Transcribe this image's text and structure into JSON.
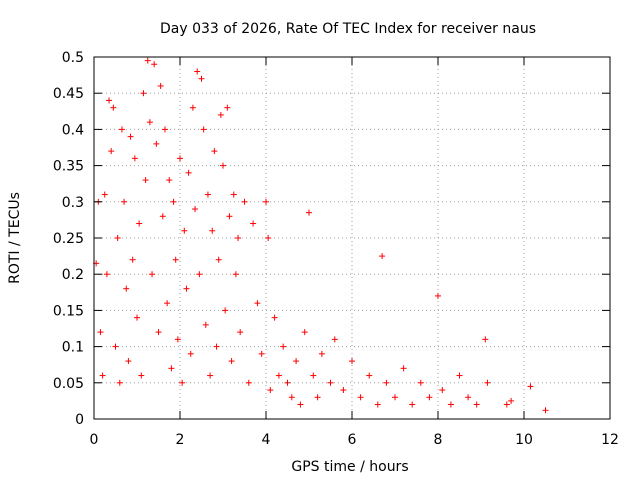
{
  "chart_data": {
    "type": "scatter",
    "title": "Day 033 of 2026, Rate Of TEC Index for receiver naus",
    "xlabel": "GPS time / hours",
    "ylabel": "ROTI / TECUs",
    "xlim": [
      0,
      12
    ],
    "ylim": [
      0,
      0.5
    ],
    "x_ticks": [
      "0",
      "2",
      "4",
      "6",
      "8",
      "10",
      "12"
    ],
    "y_ticks": [
      "0",
      "0.05",
      "0.1",
      "0.15",
      "0.2",
      "0.25",
      "0.3",
      "0.35",
      "0.4",
      "0.45",
      "0.5"
    ],
    "grid": true,
    "marker": "+",
    "color": "#ff0000",
    "points": [
      [
        0.05,
        0.215
      ],
      [
        0.1,
        0.3
      ],
      [
        0.15,
        0.12
      ],
      [
        0.2,
        0.06
      ],
      [
        0.25,
        0.31
      ],
      [
        0.3,
        0.2
      ],
      [
        0.35,
        0.44
      ],
      [
        0.4,
        0.37
      ],
      [
        0.45,
        0.43
      ],
      [
        0.5,
        0.1
      ],
      [
        0.55,
        0.25
      ],
      [
        0.6,
        0.05
      ],
      [
        0.65,
        0.4
      ],
      [
        0.7,
        0.3
      ],
      [
        0.75,
        0.18
      ],
      [
        0.8,
        0.08
      ],
      [
        0.85,
        0.39
      ],
      [
        0.9,
        0.22
      ],
      [
        0.95,
        0.36
      ],
      [
        1.0,
        0.14
      ],
      [
        1.05,
        0.27
      ],
      [
        1.1,
        0.06
      ],
      [
        1.15,
        0.45
      ],
      [
        1.2,
        0.33
      ],
      [
        1.25,
        0.495
      ],
      [
        1.3,
        0.41
      ],
      [
        1.35,
        0.2
      ],
      [
        1.4,
        0.49
      ],
      [
        1.45,
        0.38
      ],
      [
        1.5,
        0.12
      ],
      [
        1.55,
        0.46
      ],
      [
        1.6,
        0.28
      ],
      [
        1.65,
        0.4
      ],
      [
        1.7,
        0.16
      ],
      [
        1.75,
        0.33
      ],
      [
        1.8,
        0.07
      ],
      [
        1.85,
        0.3
      ],
      [
        1.9,
        0.22
      ],
      [
        1.95,
        0.11
      ],
      [
        2.0,
        0.36
      ],
      [
        2.05,
        0.05
      ],
      [
        2.1,
        0.26
      ],
      [
        2.15,
        0.18
      ],
      [
        2.2,
        0.34
      ],
      [
        2.25,
        0.09
      ],
      [
        2.3,
        0.43
      ],
      [
        2.35,
        0.29
      ],
      [
        2.4,
        0.48
      ],
      [
        2.45,
        0.2
      ],
      [
        2.5,
        0.47
      ],
      [
        2.55,
        0.4
      ],
      [
        2.6,
        0.13
      ],
      [
        2.65,
        0.31
      ],
      [
        2.7,
        0.06
      ],
      [
        2.75,
        0.26
      ],
      [
        2.8,
        0.37
      ],
      [
        2.85,
        0.1
      ],
      [
        2.9,
        0.22
      ],
      [
        2.95,
        0.42
      ],
      [
        3.0,
        0.35
      ],
      [
        3.05,
        0.15
      ],
      [
        3.1,
        0.43
      ],
      [
        3.15,
        0.28
      ],
      [
        3.2,
        0.08
      ],
      [
        3.25,
        0.31
      ],
      [
        3.3,
        0.2
      ],
      [
        3.35,
        0.25
      ],
      [
        3.4,
        0.12
      ],
      [
        3.5,
        0.3
      ],
      [
        3.6,
        0.05
      ],
      [
        3.7,
        0.27
      ],
      [
        3.8,
        0.16
      ],
      [
        3.9,
        0.09
      ],
      [
        4.0,
        0.3
      ],
      [
        4.05,
        0.25
      ],
      [
        4.1,
        0.04
      ],
      [
        4.2,
        0.14
      ],
      [
        4.3,
        0.06
      ],
      [
        4.4,
        0.1
      ],
      [
        4.5,
        0.05
      ],
      [
        4.6,
        0.03
      ],
      [
        4.7,
        0.08
      ],
      [
        4.8,
        0.02
      ],
      [
        4.9,
        0.12
      ],
      [
        5.0,
        0.285
      ],
      [
        5.1,
        0.06
      ],
      [
        5.2,
        0.03
      ],
      [
        5.3,
        0.09
      ],
      [
        5.5,
        0.05
      ],
      [
        5.6,
        0.11
      ],
      [
        5.8,
        0.04
      ],
      [
        6.0,
        0.08
      ],
      [
        6.2,
        0.03
      ],
      [
        6.4,
        0.06
      ],
      [
        6.6,
        0.02
      ],
      [
        6.7,
        0.225
      ],
      [
        6.8,
        0.05
      ],
      [
        7.0,
        0.03
      ],
      [
        7.2,
        0.07
      ],
      [
        7.4,
        0.02
      ],
      [
        7.6,
        0.05
      ],
      [
        7.8,
        0.03
      ],
      [
        8.0,
        0.17
      ],
      [
        8.1,
        0.04
      ],
      [
        8.3,
        0.02
      ],
      [
        8.5,
        0.06
      ],
      [
        8.7,
        0.03
      ],
      [
        8.9,
        0.02
      ],
      [
        9.1,
        0.11
      ],
      [
        9.15,
        0.05
      ],
      [
        9.6,
        0.02
      ],
      [
        9.7,
        0.025
      ],
      [
        10.15,
        0.045
      ],
      [
        10.5,
        0.012
      ]
    ]
  }
}
